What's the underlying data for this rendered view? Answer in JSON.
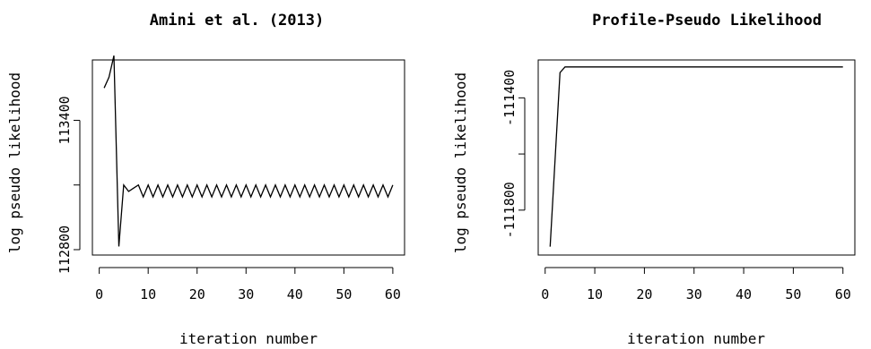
{
  "chart_data": [
    {
      "type": "line",
      "title": "Amini et al. (2013)",
      "xlabel": "iteration number",
      "ylabel": "log pseudo likelihood",
      "xlim": [
        -1.4,
        62.4
      ],
      "ylim": [
        112775,
        113680
      ],
      "x_ticks": [
        0,
        10,
        20,
        30,
        40,
        50,
        60
      ],
      "x_tick_labels": [
        "0",
        "10",
        "20",
        "30",
        "40",
        "50",
        "60"
      ],
      "y_ticks": [
        112800,
        113100,
        113400
      ],
      "y_tick_labels": [
        "112800",
        "",
        "113400"
      ],
      "grid": false,
      "series": [
        {
          "x": [
            1,
            2,
            3,
            4,
            5,
            6,
            7,
            8,
            9,
            10,
            11,
            12,
            13,
            14,
            15,
            16,
            17,
            18,
            19,
            20,
            21,
            22,
            23,
            24,
            25,
            26,
            27,
            28,
            29,
            30,
            31,
            32,
            33,
            34,
            35,
            36,
            37,
            38,
            39,
            40,
            41,
            42,
            43,
            44,
            45,
            46,
            47,
            48,
            49,
            50,
            51,
            52,
            53,
            54,
            55,
            56,
            57,
            58,
            59,
            60
          ],
          "values": [
            113550,
            113600,
            113700,
            112815,
            113100,
            113070,
            113085,
            113100,
            113045,
            113100,
            113045,
            113100,
            113045,
            113100,
            113045,
            113100,
            113045,
            113100,
            113045,
            113100,
            113045,
            113100,
            113045,
            113100,
            113045,
            113100,
            113045,
            113100,
            113045,
            113100,
            113045,
            113100,
            113045,
            113100,
            113045,
            113100,
            113045,
            113100,
            113045,
            113100,
            113045,
            113100,
            113045,
            113100,
            113045,
            113100,
            113045,
            113100,
            113045,
            113100,
            113045,
            113100,
            113045,
            113100,
            113045,
            113100,
            113045,
            113100,
            113045,
            113100
          ]
        }
      ]
    },
    {
      "type": "line",
      "title": "Profile-Pseudo Likelihood",
      "xlabel": "iteration number",
      "ylabel": "log pseudo likelihood",
      "xlim": [
        -1.4,
        62.4
      ],
      "ylim": [
        -111960,
        -111265
      ],
      "x_ticks": [
        0,
        10,
        20,
        30,
        40,
        50,
        60
      ],
      "x_tick_labels": [
        "0",
        "10",
        "20",
        "30",
        "40",
        "50",
        "60"
      ],
      "y_ticks": [
        -111800,
        -111600,
        -111400
      ],
      "y_tick_labels": [
        "-111800",
        "",
        "-111400"
      ],
      "grid": false,
      "series": [
        {
          "x": [
            1,
            2,
            3,
            4,
            5,
            6,
            7,
            8,
            9,
            10,
            11,
            12,
            13,
            14,
            15,
            16,
            17,
            18,
            19,
            20,
            21,
            22,
            23,
            24,
            25,
            26,
            27,
            28,
            29,
            30,
            31,
            32,
            33,
            34,
            35,
            36,
            37,
            38,
            39,
            40,
            41,
            42,
            43,
            44,
            45,
            46,
            47,
            48,
            49,
            50,
            51,
            52,
            53,
            54,
            55,
            56,
            57,
            58,
            59,
            60
          ],
          "values": [
            -111930,
            -111620,
            -111310,
            -111290,
            -111290,
            -111290,
            -111290,
            -111290,
            -111290,
            -111290,
            -111290,
            -111290,
            -111290,
            -111290,
            -111290,
            -111290,
            -111290,
            -111290,
            -111290,
            -111290,
            -111290,
            -111290,
            -111290,
            -111290,
            -111290,
            -111290,
            -111290,
            -111290,
            -111290,
            -111290,
            -111290,
            -111290,
            -111290,
            -111290,
            -111290,
            -111290,
            -111290,
            -111290,
            -111290,
            -111290,
            -111290,
            -111290,
            -111290,
            -111290,
            -111290,
            -111290,
            -111290,
            -111290,
            -111290,
            -111290,
            -111290,
            -111290,
            -111290,
            -111290,
            -111290,
            -111290,
            -111290,
            -111290,
            -111290,
            -111290
          ]
        }
      ]
    }
  ]
}
